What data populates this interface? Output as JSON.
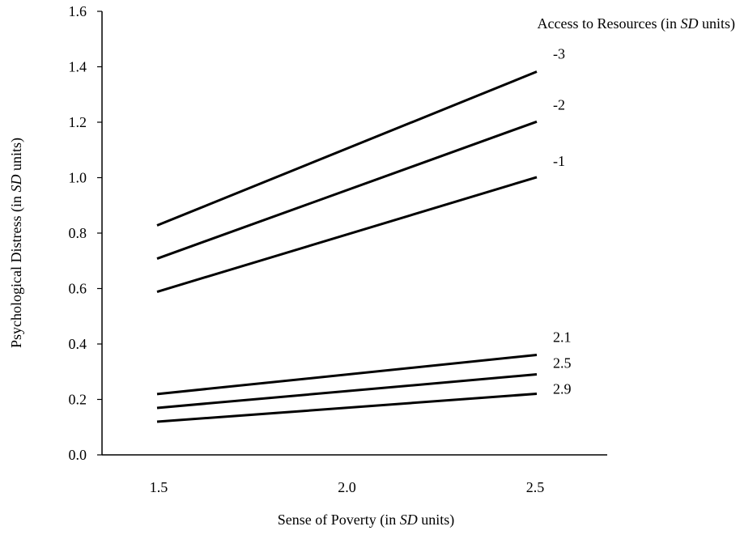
{
  "chart_data": {
    "type": "line",
    "title": "",
    "xlabel": "Sense of Poverty (in SD units)",
    "xlabel_parts": [
      "Sense of Poverty (in ",
      "SD",
      " units)"
    ],
    "ylabel": "Psychological Distress (in SD units)",
    "ylabel_parts": [
      "Psychological Distress (in ",
      "SD",
      " units)"
    ],
    "legend_title": "Access to Resources (in SD units)",
    "legend_title_parts": [
      "Access to Resources (in ",
      "SD",
      " units)"
    ],
    "legend_placement": "top-right, labels at line ends",
    "grid": false,
    "xlim": [
      1.5,
      2.5
    ],
    "ylim": [
      0.0,
      1.6
    ],
    "x": [
      1.5,
      2.5
    ],
    "x_tick_labels": [
      "1.5",
      "2.0",
      "2.5"
    ],
    "y_tick_labels": [
      "0.0",
      "0.2",
      "0.4",
      "0.6",
      "0.8",
      "1.0",
      "1.2",
      "1.4",
      "1.6"
    ],
    "line_color": "#000000",
    "series": [
      {
        "name": "-3",
        "values": [
          0.83,
          1.38
        ]
      },
      {
        "name": "-2",
        "values": [
          0.71,
          1.2
        ]
      },
      {
        "name": "-1",
        "values": [
          0.59,
          1.0
        ]
      },
      {
        "name": "2.1",
        "values": [
          0.22,
          0.36
        ]
      },
      {
        "name": "2.5",
        "values": [
          0.17,
          0.29
        ]
      },
      {
        "name": "2.9",
        "values": [
          0.12,
          0.22
        ]
      }
    ]
  }
}
